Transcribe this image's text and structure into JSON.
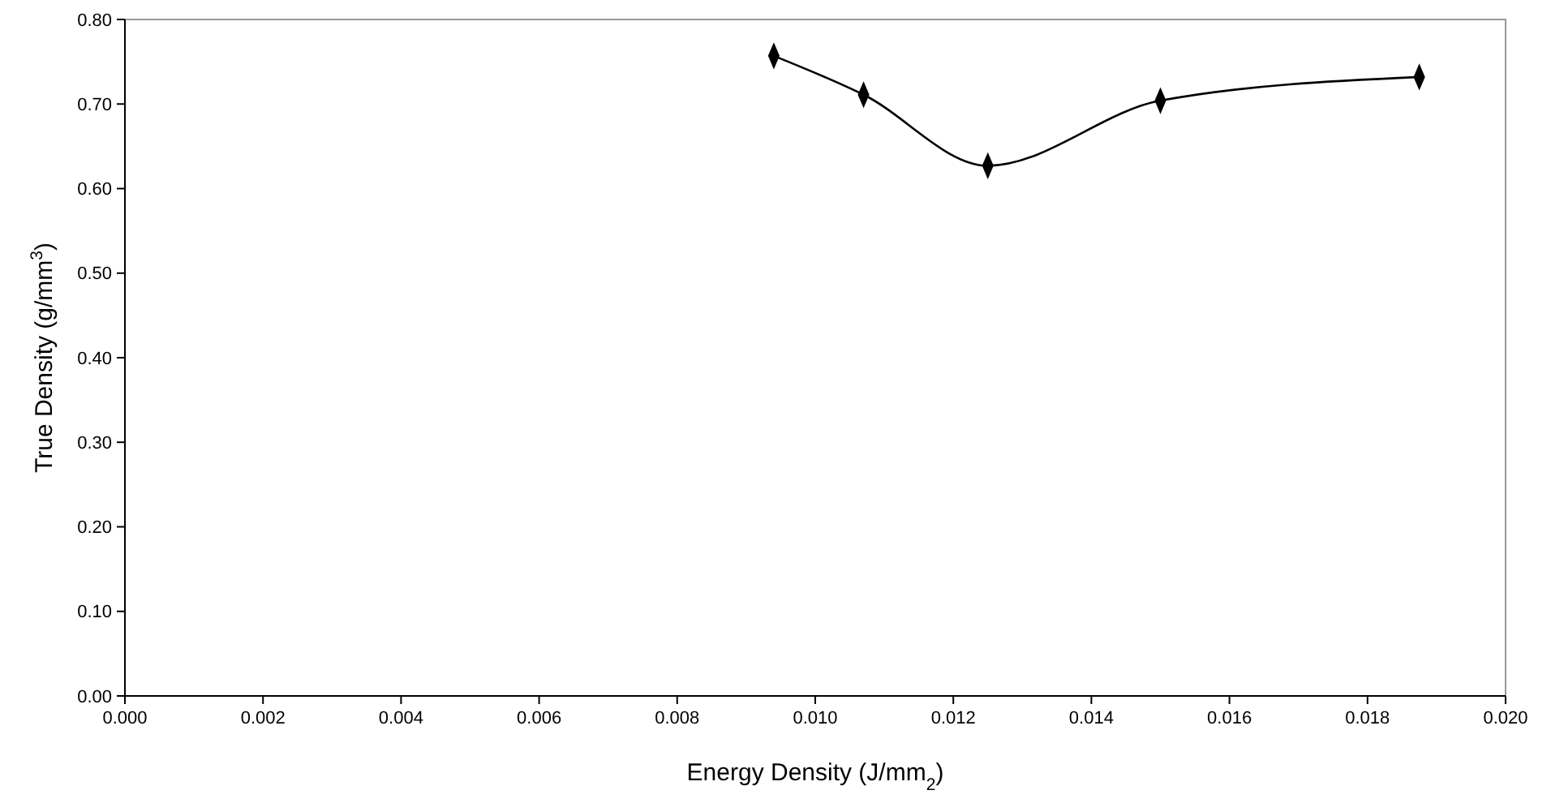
{
  "chart_data": {
    "type": "line",
    "xlabel": "Energy Density (J/mm$_{2}$)",
    "ylabel": "True Density (g/mm$^{3}$)",
    "x": [
      0.0094,
      0.0107,
      0.0125,
      0.015,
      0.01875
    ],
    "series": [
      {
        "color": "#000000",
        "values": [
          0.757,
          0.711,
          0.627,
          0.704,
          0.732
        ]
      }
    ],
    "xlim": [
      0,
      0.02
    ],
    "xticks": [
      {
        "value": 0,
        "label": "0.000"
      },
      {
        "value": 0.002,
        "label": "0.002"
      },
      {
        "value": 0.004,
        "label": "0.004"
      },
      {
        "value": 0.006,
        "label": "0.006"
      },
      {
        "value": 0.008,
        "label": "0.008"
      },
      {
        "value": 0.01,
        "label": "0.010"
      },
      {
        "value": 0.012,
        "label": "0.012"
      },
      {
        "value": 0.014,
        "label": "0.014"
      },
      {
        "value": 0.016,
        "label": "0.016"
      },
      {
        "value": 0.018,
        "label": "0.018"
      },
      {
        "value": 0.02,
        "label": "0.020"
      }
    ],
    "ylim": [
      0,
      0.8
    ],
    "yticks": [
      {
        "value": 0,
        "label": "0.00"
      },
      {
        "value": 0.1,
        "label": "0.10"
      },
      {
        "value": 0.2,
        "label": "0.20"
      },
      {
        "value": 0.3,
        "label": "0.30"
      },
      {
        "value": 0.4,
        "label": "0.40"
      },
      {
        "value": 0.5,
        "label": "0.50"
      },
      {
        "value": 0.6,
        "label": "0.60"
      },
      {
        "value": 0.7,
        "label": "0.70"
      },
      {
        "value": 0.8,
        "label": "0.80"
      }
    ],
    "grid": false,
    "marker": "diamond",
    "line_style": "solid"
  }
}
